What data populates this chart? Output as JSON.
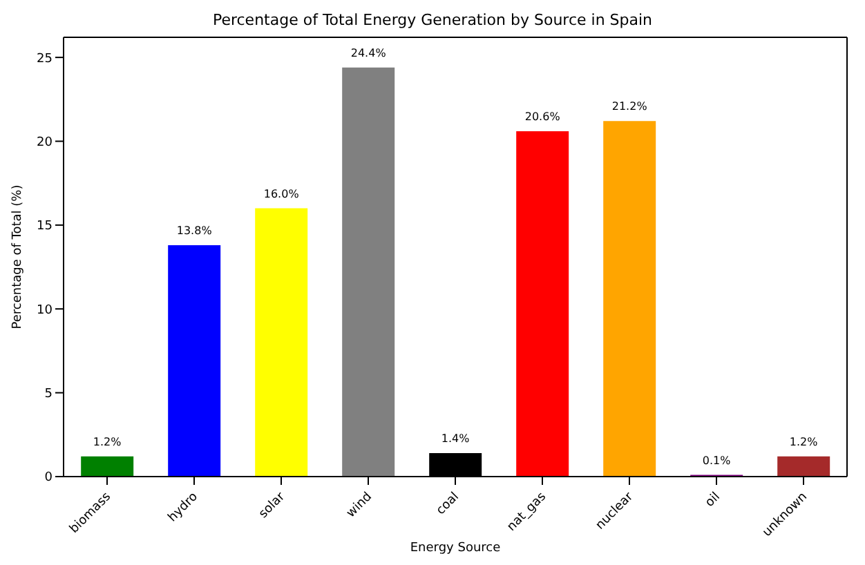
{
  "chart_data": {
    "type": "bar",
    "title": "Percentage of Total Energy Generation by Source in Spain",
    "xlabel": "Energy Source",
    "ylabel": "Percentage of Total (%)",
    "categories": [
      "biomass",
      "hydro",
      "solar",
      "wind",
      "coal",
      "nat_gas",
      "nuclear",
      "oil",
      "unknown"
    ],
    "values": [
      1.2,
      13.8,
      16.0,
      24.4,
      1.4,
      20.6,
      21.2,
      0.1,
      1.2
    ],
    "colors": [
      "#008000",
      "#0000ff",
      "#ffff00",
      "#808080",
      "#000000",
      "#ff0000",
      "#ffa500",
      "#800080",
      "#a52a2a"
    ],
    "value_labels": [
      "1.2%",
      "13.8%",
      "16.0%",
      "24.4%",
      "1.4%",
      "20.6%",
      "21.2%",
      "0.1%",
      "1.2%"
    ],
    "ylim": [
      0,
      26.2
    ],
    "yticks": [
      0,
      5,
      10,
      15,
      20,
      25
    ]
  }
}
